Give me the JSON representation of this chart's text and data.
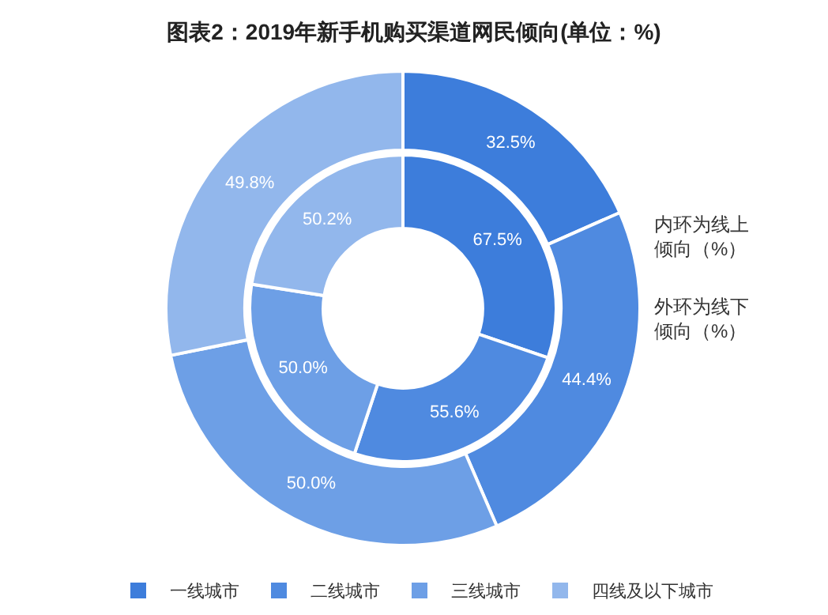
{
  "chart_data": {
    "type": "donut",
    "title": "图表2：2019年新手机购买渠道网民倾向(单位：%)",
    "categories": [
      "一线城市",
      "二线城市",
      "三线城市",
      "四线及以下城市"
    ],
    "colors": [
      "#3d7ddb",
      "#4f8ae0",
      "#6d9fe6",
      "#92b7ec"
    ],
    "series": [
      {
        "values": [
          32.5,
          44.4,
          50.0,
          49.8
        ],
        "value_labels": [
          "32.5%",
          "44.4%",
          "50.0%",
          "49.8%"
        ]
      },
      {
        "values": [
          67.5,
          55.6,
          50.0,
          50.2
        ],
        "value_labels": [
          "67.5%",
          "55.6%",
          "50.0%",
          "50.2%"
        ]
      }
    ],
    "annotations": [
      "内环为线上倾向（%）",
      "外环为线下倾向（%）"
    ],
    "legend": "bottom"
  }
}
